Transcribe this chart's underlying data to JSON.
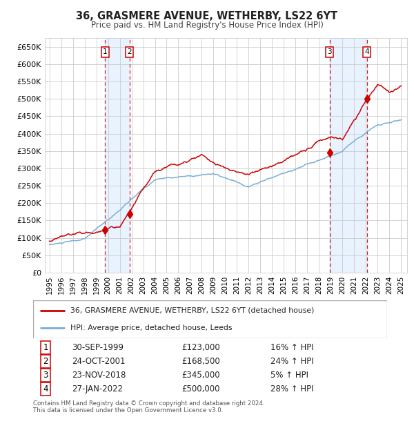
{
  "title": "36, GRASMERE AVENUE, WETHERBY, LS22 6YT",
  "subtitle": "Price paid vs. HM Land Registry's House Price Index (HPI)",
  "legend_line1": "36, GRASMERE AVENUE, WETHERBY, LS22 6YT (detached house)",
  "legend_line2": "HPI: Average price, detached house, Leeds",
  "footer": "Contains HM Land Registry data © Crown copyright and database right 2024.\nThis data is licensed under the Open Government Licence v3.0.",
  "transactions": [
    {
      "num": 1,
      "date": "30-SEP-1999",
      "price": 123000,
      "year": 1999.75,
      "hpi_pct": "16% ↑ HPI"
    },
    {
      "num": 2,
      "date": "24-OCT-2001",
      "price": 168500,
      "year": 2001.83,
      "hpi_pct": "24% ↑ HPI"
    },
    {
      "num": 3,
      "date": "23-NOV-2018",
      "price": 345000,
      "year": 2018.9,
      "hpi_pct": "5% ↑ HPI"
    },
    {
      "num": 4,
      "date": "27-JAN-2022",
      "price": 500000,
      "year": 2022.08,
      "hpi_pct": "28% ↑ HPI"
    }
  ],
  "red_line_color": "#cc0000",
  "blue_line_color": "#7aaed6",
  "grid_color": "#cccccc",
  "shade_color": "#ddeeff",
  "ylim": [
    0,
    675000
  ],
  "yticks": [
    0,
    50000,
    100000,
    150000,
    200000,
    250000,
    300000,
    350000,
    400000,
    450000,
    500000,
    550000,
    600000,
    650000
  ],
  "xtick_years": [
    1995,
    1996,
    1997,
    1998,
    1999,
    2000,
    2001,
    2002,
    2003,
    2004,
    2005,
    2006,
    2007,
    2008,
    2009,
    2010,
    2011,
    2012,
    2013,
    2014,
    2015,
    2016,
    2017,
    2018,
    2019,
    2020,
    2021,
    2022,
    2023,
    2024,
    2025
  ],
  "xlim": [
    1994.6,
    2025.5
  ]
}
